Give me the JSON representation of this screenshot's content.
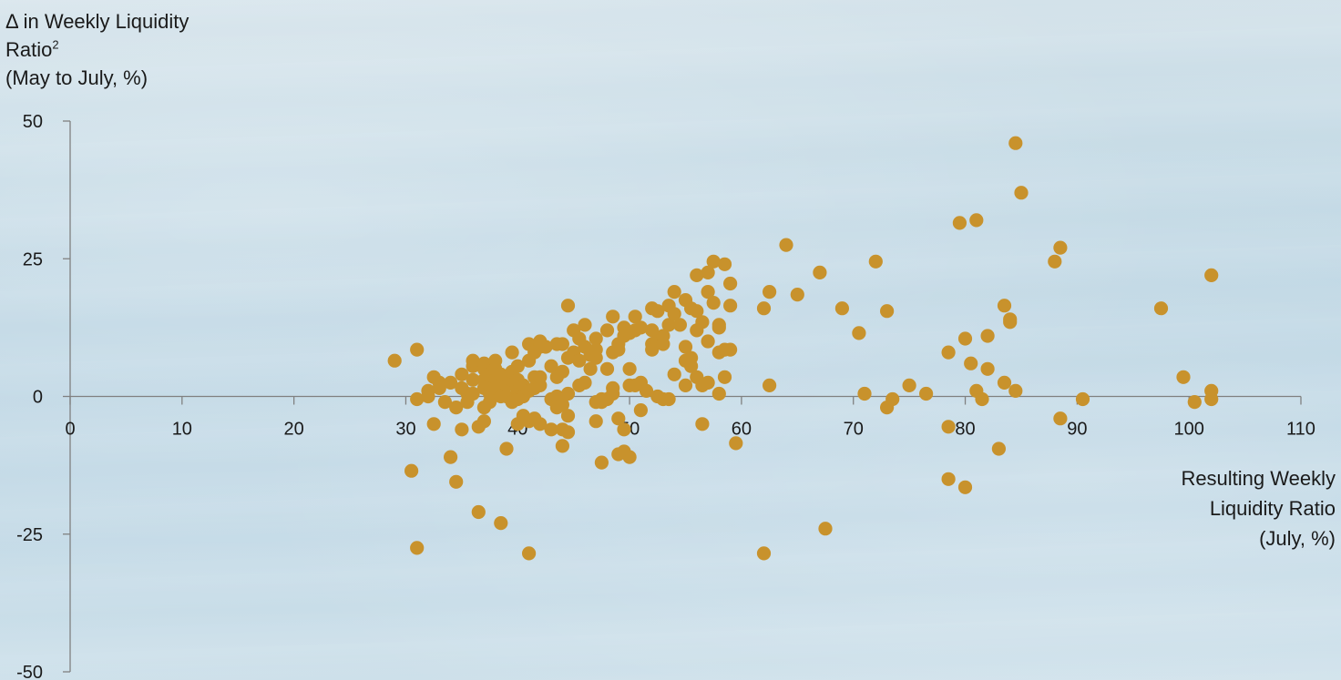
{
  "chart_data": {
    "type": "scatter",
    "ylabel_lines": [
      "Δ in Weekly Liquidity",
      "Ratio",
      "(May to July, %)"
    ],
    "ylabel_superscript": "2",
    "xlabel_lines": [
      "Resulting Weekly",
      "Liquidity Ratio",
      "(July, %)"
    ],
    "xlim": [
      0,
      110
    ],
    "ylim": [
      -50,
      50
    ],
    "x_ticks": [
      0,
      10,
      20,
      30,
      40,
      50,
      60,
      70,
      80,
      90,
      100,
      110
    ],
    "y_ticks": [
      50,
      25,
      0,
      -25,
      -50
    ],
    "point_color": "#c8922c",
    "axis_color": "#808080",
    "points": [
      [
        29,
        6.5
      ],
      [
        30.5,
        -13.5
      ],
      [
        31,
        8.5
      ],
      [
        31,
        -0.5
      ],
      [
        31,
        -27.5
      ],
      [
        32,
        0
      ],
      [
        32,
        1
      ],
      [
        32.5,
        -5
      ],
      [
        32.5,
        3.5
      ],
      [
        33,
        1.5
      ],
      [
        33,
        2.5
      ],
      [
        33.5,
        -1
      ],
      [
        34,
        -11
      ],
      [
        34,
        2.5
      ],
      [
        34.5,
        -2
      ],
      [
        34.5,
        -15.5
      ],
      [
        35,
        4
      ],
      [
        35,
        1.5
      ],
      [
        35,
        -6
      ],
      [
        35.5,
        0.5
      ],
      [
        35.5,
        -1
      ],
      [
        36,
        5.5
      ],
      [
        36,
        6.5
      ],
      [
        36,
        3
      ],
      [
        36,
        0.5
      ],
      [
        36.5,
        -21
      ],
      [
        36.5,
        -5.5
      ],
      [
        37,
        -4.5
      ],
      [
        37,
        -2
      ],
      [
        37,
        1.5
      ],
      [
        37,
        3
      ],
      [
        37,
        5
      ],
      [
        37,
        6
      ],
      [
        37.5,
        0.5
      ],
      [
        37.5,
        2
      ],
      [
        37.5,
        4
      ],
      [
        37.5,
        -1
      ],
      [
        38,
        0.5
      ],
      [
        38,
        3
      ],
      [
        38,
        6.5
      ],
      [
        38,
        5
      ],
      [
        38,
        1.5
      ],
      [
        38.5,
        0
      ],
      [
        38.5,
        -23
      ],
      [
        38.5,
        4
      ],
      [
        39,
        2
      ],
      [
        39,
        -9.5
      ],
      [
        39,
        0
      ],
      [
        39.5,
        3
      ],
      [
        39.5,
        8
      ],
      [
        39.5,
        -1
      ],
      [
        39.5,
        4.5
      ],
      [
        40,
        -5
      ],
      [
        40,
        1
      ],
      [
        40,
        3
      ],
      [
        40,
        5.5
      ],
      [
        40,
        -0.5
      ],
      [
        40.5,
        2
      ],
      [
        40.5,
        0
      ],
      [
        40.5,
        -3.5
      ],
      [
        41,
        -4.5
      ],
      [
        41,
        1
      ],
      [
        41,
        6.5
      ],
      [
        41,
        9.5
      ],
      [
        41,
        -28.5
      ],
      [
        41.5,
        8
      ],
      [
        41.5,
        3.5
      ],
      [
        41.5,
        -4
      ],
      [
        41.5,
        1.5
      ],
      [
        42,
        9
      ],
      [
        42,
        10
      ],
      [
        42,
        2
      ],
      [
        42,
        3.5
      ],
      [
        42,
        -5
      ],
      [
        42.5,
        9
      ],
      [
        43,
        -6
      ],
      [
        43,
        -0.5
      ],
      [
        43,
        5.5
      ],
      [
        43.5,
        9.5
      ],
      [
        43.5,
        3.5
      ],
      [
        43.5,
        0
      ],
      [
        43.5,
        -2
      ],
      [
        44,
        -9
      ],
      [
        44,
        -6
      ],
      [
        44,
        -1.5
      ],
      [
        44,
        9.5
      ],
      [
        44,
        4.5
      ],
      [
        44.5,
        16.5
      ],
      [
        44.5,
        -6.5
      ],
      [
        44.5,
        -3.5
      ],
      [
        44.5,
        0.5
      ],
      [
        44.5,
        7
      ],
      [
        45,
        12
      ],
      [
        45,
        8
      ],
      [
        45.5,
        6.5
      ],
      [
        45.5,
        10.5
      ],
      [
        45.5,
        2
      ],
      [
        46,
        13
      ],
      [
        46,
        9
      ],
      [
        46,
        2.5
      ],
      [
        46.5,
        7.5
      ],
      [
        46.5,
        5
      ],
      [
        47,
        7
      ],
      [
        47,
        10.5
      ],
      [
        47,
        8.5
      ],
      [
        47,
        -4.5
      ],
      [
        47,
        -1
      ],
      [
        47.5,
        -12
      ],
      [
        47.5,
        -1
      ],
      [
        47.5,
        -0.5
      ],
      [
        48,
        5
      ],
      [
        48,
        12
      ],
      [
        48,
        -0.5
      ],
      [
        48.5,
        14.5
      ],
      [
        48.5,
        1.5
      ],
      [
        48.5,
        8
      ],
      [
        48.5,
        0.5
      ],
      [
        49,
        9.5
      ],
      [
        49,
        8.5
      ],
      [
        49,
        -4
      ],
      [
        49,
        -10.5
      ],
      [
        49.5,
        -6
      ],
      [
        49.5,
        -10
      ],
      [
        49.5,
        12.5
      ],
      [
        49.5,
        11
      ],
      [
        50,
        2
      ],
      [
        50,
        5
      ],
      [
        50,
        -11
      ],
      [
        50,
        11.5
      ],
      [
        50.5,
        12
      ],
      [
        50.5,
        14.5
      ],
      [
        50.5,
        2
      ],
      [
        51,
        -2.5
      ],
      [
        51,
        2.5
      ],
      [
        51,
        12.5
      ],
      [
        51.5,
        1
      ],
      [
        52,
        9.5
      ],
      [
        52,
        16
      ],
      [
        52,
        12
      ],
      [
        52,
        8.5
      ],
      [
        52.5,
        0
      ],
      [
        52.5,
        15.5
      ],
      [
        52.5,
        10
      ],
      [
        53,
        11
      ],
      [
        53,
        9.5
      ],
      [
        53,
        -0.5
      ],
      [
        53.5,
        16.5
      ],
      [
        53.5,
        13
      ],
      [
        53.5,
        -0.5
      ],
      [
        54,
        19
      ],
      [
        54,
        4
      ],
      [
        54,
        15
      ],
      [
        54.5,
        13
      ],
      [
        55,
        17.5
      ],
      [
        55,
        9
      ],
      [
        55,
        6.5
      ],
      [
        55,
        2
      ],
      [
        55.5,
        7
      ],
      [
        55.5,
        5.5
      ],
      [
        55.5,
        16
      ],
      [
        56,
        22
      ],
      [
        56,
        15.5
      ],
      [
        56,
        12
      ],
      [
        56,
        3.5
      ],
      [
        56.5,
        2
      ],
      [
        56.5,
        13.5
      ],
      [
        56.5,
        -5
      ],
      [
        57,
        22.5
      ],
      [
        57,
        19
      ],
      [
        57,
        10
      ],
      [
        57,
        2.5
      ],
      [
        57.5,
        17
      ],
      [
        57.5,
        24.5
      ],
      [
        58,
        13
      ],
      [
        58,
        12.5
      ],
      [
        58,
        8
      ],
      [
        58,
        0.5
      ],
      [
        58.5,
        8.5
      ],
      [
        58.5,
        24
      ],
      [
        58.5,
        3.5
      ],
      [
        59,
        20.5
      ],
      [
        59,
        16.5
      ],
      [
        59,
        8.5
      ],
      [
        59.5,
        -8.5
      ],
      [
        62,
        16
      ],
      [
        62,
        -28.5
      ],
      [
        62.5,
        19
      ],
      [
        62.5,
        2
      ],
      [
        64,
        27.5
      ],
      [
        65,
        18.5
      ],
      [
        67,
        22.5
      ],
      [
        67.5,
        -24
      ],
      [
        69,
        16
      ],
      [
        70.5,
        11.5
      ],
      [
        71,
        0.5
      ],
      [
        72,
        24.5
      ],
      [
        73,
        15.5
      ],
      [
        73,
        -2
      ],
      [
        73.5,
        -0.5
      ],
      [
        75,
        2
      ],
      [
        76.5,
        0.5
      ],
      [
        78.5,
        8
      ],
      [
        78.5,
        -5.5
      ],
      [
        78.5,
        -15
      ],
      [
        79.5,
        31.5
      ],
      [
        80,
        10.5
      ],
      [
        80,
        -16.5
      ],
      [
        80.5,
        6
      ],
      [
        81,
        32
      ],
      [
        81,
        1
      ],
      [
        81.5,
        -0.5
      ],
      [
        82,
        11
      ],
      [
        82,
        5
      ],
      [
        83,
        -9.5
      ],
      [
        83.5,
        16.5
      ],
      [
        83.5,
        2.5
      ],
      [
        84,
        14
      ],
      [
        84,
        13.5
      ],
      [
        84.5,
        46
      ],
      [
        84.5,
        1
      ],
      [
        85,
        37
      ],
      [
        88,
        24.5
      ],
      [
        88.5,
        27
      ],
      [
        88.5,
        -4
      ],
      [
        90.5,
        -0.5
      ],
      [
        97.5,
        16
      ],
      [
        99.5,
        3.5
      ],
      [
        100.5,
        -1
      ],
      [
        102,
        22
      ],
      [
        102,
        1
      ],
      [
        102,
        -0.5
      ]
    ]
  }
}
